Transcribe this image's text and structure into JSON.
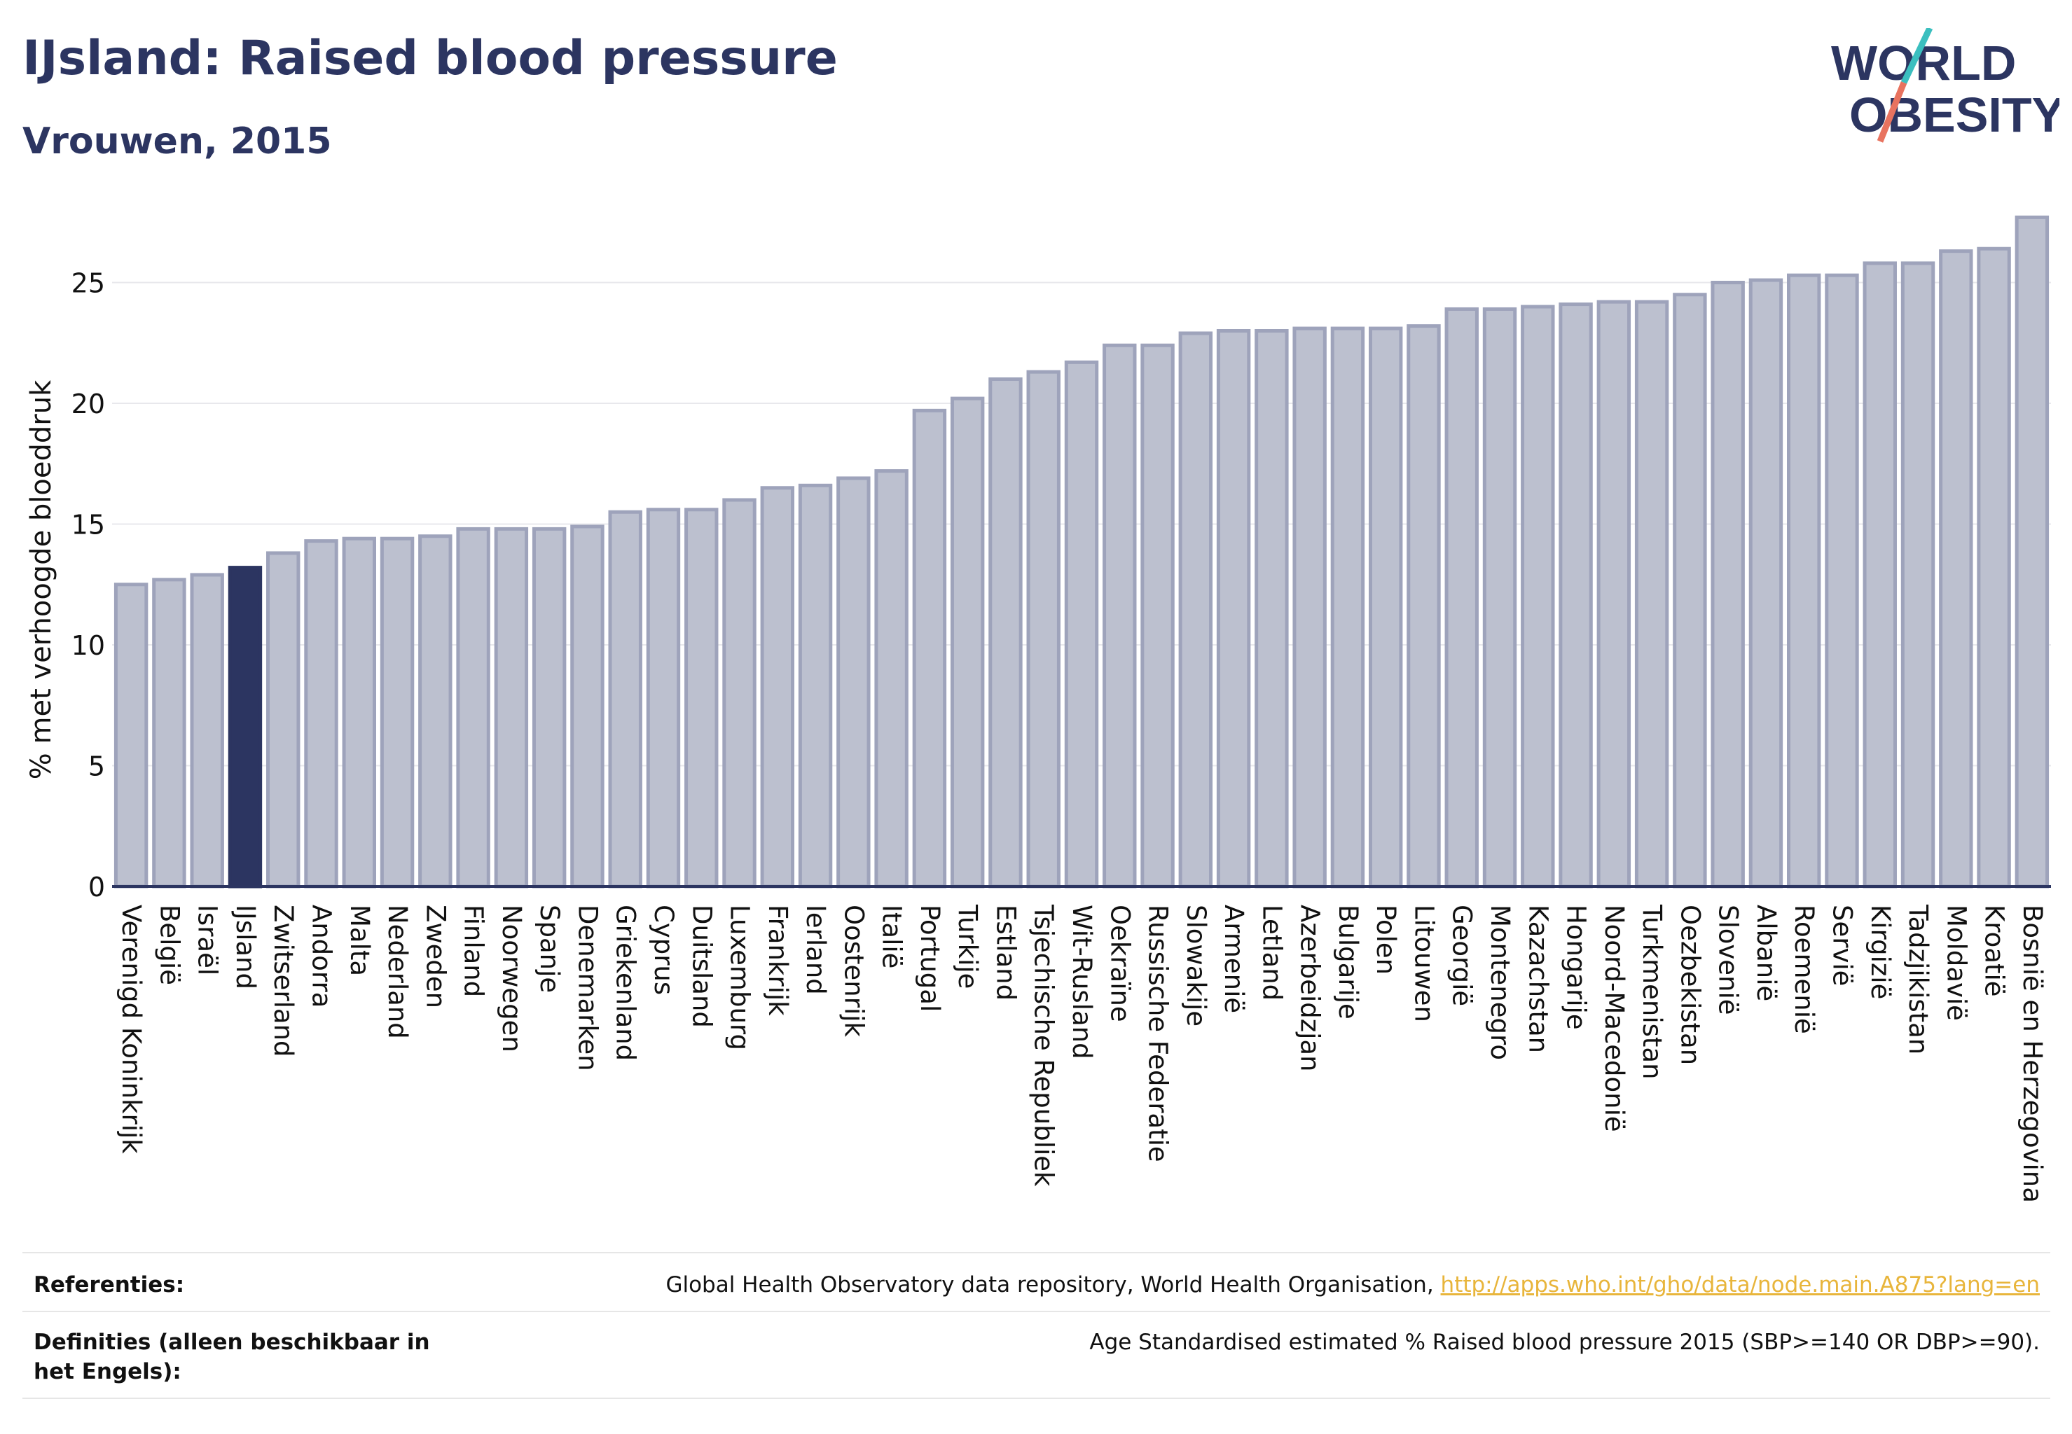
{
  "header": {
    "title": "IJsland: Raised blood pressure",
    "subtitle": "Vrouwen, 2015"
  },
  "logo": {
    "line1": "WORLD",
    "line2": "OBESITY"
  },
  "colors": {
    "bar": "#bcc0cf",
    "bar_stroke": "#9ea3bb",
    "highlight": "#2c3561",
    "grid": "#e8e8ec",
    "axis": "#2c3561",
    "link": "#e8b53b",
    "logo_teal": "#3bbfbf",
    "logo_coral": "#e8735f"
  },
  "chart_data": {
    "type": "bar",
    "ylabel": "% met verhoogde bloeddruk",
    "xlabel": "",
    "ylim": [
      0,
      28
    ],
    "yticks": [
      0,
      5,
      10,
      15,
      20,
      25
    ],
    "grid": true,
    "highlight": "IJsland",
    "categories": [
      "Verenigd Koninkrijk",
      "België",
      "Israël",
      "IJsland",
      "Zwitserland",
      "Andorra",
      "Malta",
      "Nederland",
      "Zweden",
      "Finland",
      "Noorwegen",
      "Spanje",
      "Denemarken",
      "Griekenland",
      "Cyprus",
      "Duitsland",
      "Luxemburg",
      "Frankrijk",
      "Ierland",
      "Oostenrijk",
      "Italië",
      "Portugal",
      "Turkije",
      "Estland",
      "Tsjechische Republiek",
      "Wit-Rusland",
      "Oekraïne",
      "Russische Federatie",
      "Slowakije",
      "Armenië",
      "Letland",
      "Azerbeidzjan",
      "Bulgarije",
      "Polen",
      "Litouwen",
      "Georgië",
      "Montenegro",
      "Kazachstan",
      "Hongarije",
      "Noord-Macedonië",
      "Turkmenistan",
      "Oezbekistan",
      "Slovenië",
      "Albanië",
      "Roemenië",
      "Servië",
      "Kirgizië",
      "Tadzjikistan",
      "Moldavië",
      "Kroatië",
      "Bosnië en Herzegovina"
    ],
    "values": [
      12.5,
      12.7,
      12.9,
      13.2,
      13.8,
      14.3,
      14.4,
      14.4,
      14.5,
      14.8,
      14.8,
      14.8,
      14.9,
      15.5,
      15.6,
      15.6,
      16.0,
      16.5,
      16.6,
      16.9,
      17.2,
      19.7,
      20.2,
      21.0,
      21.3,
      21.7,
      22.4,
      22.4,
      22.9,
      23.0,
      23.0,
      23.1,
      23.1,
      23.1,
      23.2,
      23.9,
      23.9,
      24.0,
      24.1,
      24.2,
      24.2,
      24.5,
      25.0,
      25.1,
      25.3,
      25.3,
      25.8,
      25.8,
      26.3,
      26.4,
      27.7
    ]
  },
  "footer": {
    "references_label": "Referenties:",
    "references_text": "Global Health Observatory data repository, World Health Organisation, ",
    "references_link": "http://apps.who.int/gho/data/node.main.A875?lang=en",
    "definitions_label": "Definities (alleen beschikbaar in het Engels):",
    "definitions_text": "Age Standardised estimated % Raised blood pressure 2015 (SBP>=140 OR DBP>=90)."
  }
}
